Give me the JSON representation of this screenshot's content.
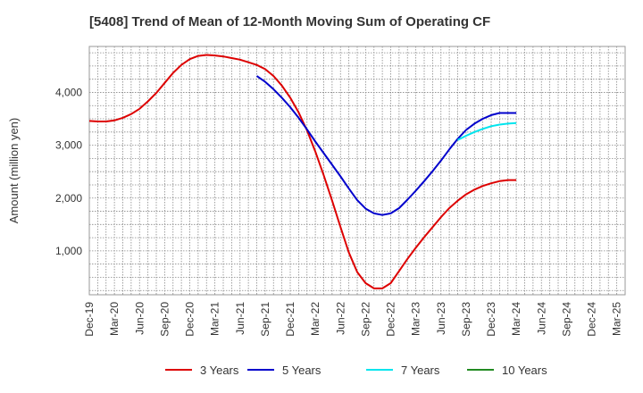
{
  "chart_data": {
    "type": "line",
    "title": "[5408]  Trend of Mean of 12-Month Moving Sum of Operating CF",
    "xlabel": "",
    "ylabel": "Amount (million yen)",
    "ylim": [
      170,
      4870
    ],
    "yticks": [
      1000,
      2000,
      3000,
      4000
    ],
    "ytick_labels": [
      "1,000",
      "2,000",
      "3,000",
      "4,000"
    ],
    "xlim": [
      0,
      64
    ],
    "xtick_positions": [
      0,
      3,
      6,
      9,
      12,
      15,
      18,
      21,
      24,
      27,
      30,
      33,
      36,
      39,
      42,
      45,
      48,
      51,
      54,
      57,
      60,
      63
    ],
    "xtick_labels": [
      "Dec-19",
      "Mar-20",
      "Jun-20",
      "Sep-20",
      "Dec-20",
      "Mar-21",
      "Jun-21",
      "Sep-21",
      "Dec-21",
      "Mar-22",
      "Jun-22",
      "Sep-22",
      "Dec-22",
      "Mar-23",
      "Jun-23",
      "Sep-23",
      "Dec-23",
      "Mar-24",
      "Jun-24",
      "Sep-24",
      "Dec-24",
      "Mar-25"
    ],
    "grid": true,
    "legend_position": "bottom",
    "series": [
      {
        "name": "3 Years",
        "color": "#dd0000",
        "x": [
          0,
          1,
          2,
          3,
          4,
          5,
          6,
          7,
          8,
          9,
          10,
          11,
          12,
          13,
          14,
          15,
          16,
          17,
          18,
          19,
          20,
          21,
          22,
          23,
          24,
          25,
          26,
          27,
          28,
          29,
          30,
          31,
          32,
          33,
          34,
          35,
          36,
          37,
          38,
          39,
          40,
          41,
          42,
          43,
          44,
          45,
          46,
          47,
          48,
          49,
          50,
          51
        ],
        "values": [
          3460,
          3450,
          3450,
          3470,
          3520,
          3590,
          3690,
          3830,
          3990,
          4180,
          4370,
          4520,
          4630,
          4690,
          4710,
          4700,
          4680,
          4650,
          4620,
          4570,
          4520,
          4440,
          4310,
          4130,
          3900,
          3620,
          3280,
          2880,
          2430,
          1950,
          1450,
          970,
          600,
          390,
          290,
          290,
          390,
          620,
          850,
          1060,
          1260,
          1450,
          1640,
          1810,
          1950,
          2070,
          2160,
          2230,
          2280,
          2320,
          2340,
          2340
        ]
      },
      {
        "name": "5 Years",
        "color": "#0000cc",
        "x": [
          20,
          21,
          22,
          23,
          24,
          25,
          26,
          27,
          28,
          29,
          30,
          31,
          32,
          33,
          34,
          35,
          36,
          37,
          38,
          39,
          40,
          41,
          42,
          43,
          44,
          45,
          46,
          47,
          48,
          49,
          50,
          51
        ],
        "values": [
          4310,
          4200,
          4060,
          3900,
          3720,
          3520,
          3300,
          3070,
          2850,
          2630,
          2410,
          2180,
          1960,
          1800,
          1710,
          1680,
          1710,
          1810,
          1970,
          2140,
          2320,
          2510,
          2710,
          2920,
          3120,
          3290,
          3410,
          3500,
          3570,
          3610,
          3610,
          3610
        ]
      },
      {
        "name": "7 Years",
        "color": "#00e5ee",
        "x": [
          44,
          45,
          46,
          47,
          48,
          49,
          50,
          51
        ],
        "values": [
          3100,
          3180,
          3250,
          3310,
          3360,
          3390,
          3410,
          3420
        ]
      },
      {
        "name": "10 Years",
        "color": "#228b22",
        "x": [],
        "values": []
      }
    ]
  }
}
